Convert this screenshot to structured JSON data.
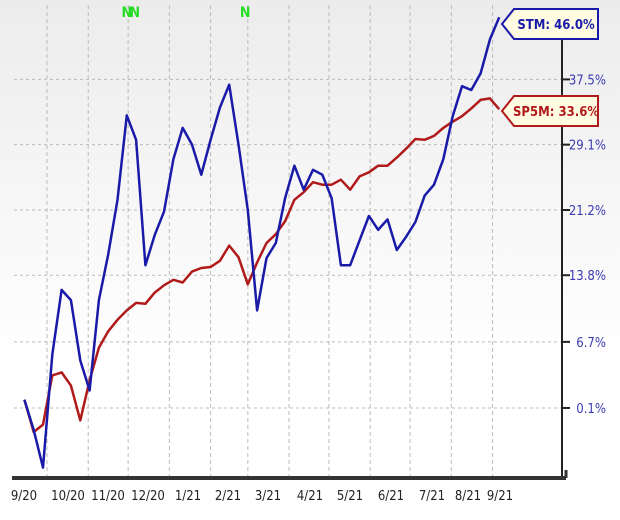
{
  "chart_data": {
    "type": "line",
    "title": "",
    "xlabel": "",
    "ylabel": "",
    "y_scale": "log",
    "grid": true,
    "x_tick_labels": [
      "9/20",
      "10/20",
      "11/20",
      "12/20",
      "1/21",
      "2/21",
      "3/21",
      "4/21",
      "5/21",
      "6/21",
      "7/21",
      "8/21",
      "9/21"
    ],
    "y_tick_labels": [
      "0.1%",
      "6.7%",
      "13.8%",
      "21.2%",
      "29.1%",
      "37.5%"
    ],
    "y_ticks": [
      0.1,
      6.7,
      13.8,
      21.2,
      29.1,
      37.5
    ],
    "x": [
      "2020-09-14",
      "2020-09-21",
      "2020-09-28",
      "2020-10-05",
      "2020-10-12",
      "2020-10-19",
      "2020-10-26",
      "2020-11-02",
      "2020-11-09",
      "2020-11-16",
      "2020-11-23",
      "2020-11-30",
      "2020-12-07",
      "2020-12-14",
      "2020-12-21",
      "2020-12-28",
      "2021-01-04",
      "2021-01-11",
      "2021-01-18",
      "2021-01-25",
      "2021-02-01",
      "2021-02-08",
      "2021-02-15",
      "2021-02-22",
      "2021-03-01",
      "2021-03-08",
      "2021-03-15",
      "2021-03-22",
      "2021-03-29",
      "2021-04-05",
      "2021-04-12",
      "2021-04-19",
      "2021-04-26",
      "2021-05-03",
      "2021-05-10",
      "2021-05-17",
      "2021-05-24",
      "2021-05-31",
      "2021-06-07",
      "2021-06-14",
      "2021-06-21",
      "2021-06-28",
      "2021-07-05",
      "2021-07-12",
      "2021-07-19",
      "2021-07-26",
      "2021-08-02",
      "2021-08-09",
      "2021-08-16",
      "2021-08-23",
      "2021-08-30",
      "2021-09-06"
    ],
    "series": [
      {
        "name": "STM",
        "end_label": "STM: 46.0%",
        "color": "#1a1aa8",
        "values": [
          0.9,
          -2.0,
          -5.5,
          5.4,
          12.2,
          11.1,
          4.8,
          1.8,
          11.1,
          16.1,
          22.4,
          32.8,
          29.7,
          14.9,
          18.3,
          21.0,
          27.3,
          31.2,
          29.1,
          25.4,
          29.7,
          33.8,
          36.8,
          29.1,
          21.2,
          10.0,
          15.7,
          17.4,
          22.6,
          26.5,
          23.6,
          26.0,
          25.4,
          22.6,
          14.9,
          14.9,
          17.7,
          20.5,
          18.9,
          20.1,
          16.6,
          18.1,
          19.8,
          22.9,
          24.2,
          27.3,
          32.7,
          36.6,
          36.1,
          38.3,
          42.9,
          46.0
        ]
      },
      {
        "name": "SP5M",
        "end_label": "SP5M: 33.6%",
        "color": "#b01a1a",
        "values": [
          0.9,
          -2.2,
          -1.5,
          3.3,
          3.6,
          2.3,
          -1.1,
          2.8,
          6.1,
          7.8,
          9.0,
          10.0,
          10.8,
          10.7,
          11.9,
          12.7,
          13.3,
          13.0,
          14.2,
          14.6,
          14.7,
          15.4,
          17.1,
          15.8,
          12.8,
          15.2,
          17.4,
          18.4,
          19.9,
          22.4,
          23.3,
          24.5,
          24.2,
          24.2,
          24.8,
          23.6,
          25.2,
          25.7,
          26.5,
          26.5,
          27.5,
          28.6,
          29.8,
          29.7,
          30.2,
          31.2,
          32.0,
          32.7,
          33.7,
          34.8,
          35.0,
          33.6
        ]
      }
    ],
    "annotations": [
      {
        "text": "N",
        "date": "2020-11-30",
        "color": "#22dd22"
      },
      {
        "text": "N",
        "date": "2020-12-06",
        "color": "#22dd22"
      },
      {
        "text": "N",
        "date": "2021-02-27",
        "color": "#22dd22"
      }
    ],
    "legend": "end-of-line labels, right"
  }
}
